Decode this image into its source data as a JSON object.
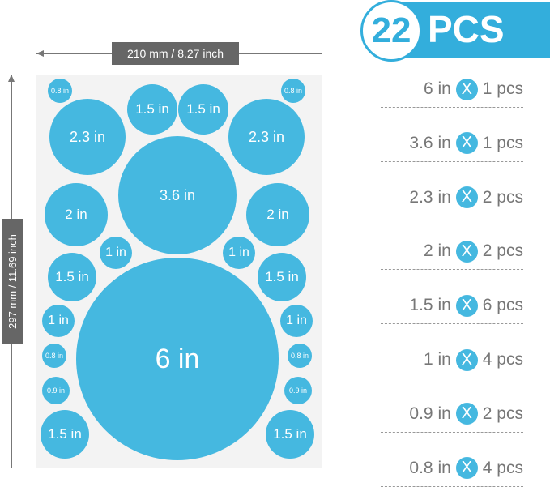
{
  "accent_color": "#45b8e0",
  "header": {
    "count": "22",
    "unit": "PCS"
  },
  "dimensions": {
    "width": "210 mm / 8.27 inch",
    "height": "297 mm / 11.69 inch"
  },
  "circles": [
    "0.8 in",
    "1.5 in",
    "1.5 in",
    "0.8 in",
    "2.3 in",
    "2.3 in",
    "3.6 in",
    "2 in",
    "2 in",
    "1 in",
    "1 in",
    "1.5 in",
    "1.5 in",
    "6 in",
    "1 in",
    "1 in",
    "0.8 in",
    "0.8 in",
    "0.9 in",
    "0.9 in",
    "1.5 in",
    "1.5 in"
  ],
  "list": [
    {
      "size": "6 in",
      "x": "X",
      "qty": "1 pcs"
    },
    {
      "size": "3.6 in",
      "x": "X",
      "qty": "1 pcs"
    },
    {
      "size": "2.3 in",
      "x": "X",
      "qty": "2 pcs"
    },
    {
      "size": "2 in",
      "x": "X",
      "qty": "2 pcs"
    },
    {
      "size": "1.5 in",
      "x": "X",
      "qty": "6 pcs"
    },
    {
      "size": "1 in",
      "x": "X",
      "qty": "4 pcs"
    },
    {
      "size": "0.9 in",
      "x": "X",
      "qty": "2 pcs"
    },
    {
      "size": "0.8 in",
      "x": "X",
      "qty": "4 pcs"
    }
  ]
}
